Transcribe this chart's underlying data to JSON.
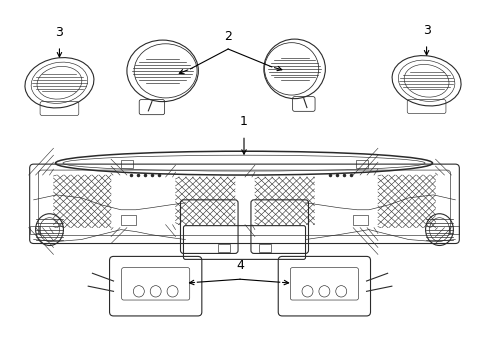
{
  "bg_color": "#ffffff",
  "line_color": "#2a2a2a",
  "label_color": "#000000",
  "fig_width": 4.89,
  "fig_height": 3.6,
  "dpi": 100,
  "lw": 0.8,
  "lw_thin": 0.45,
  "lw_thick": 1.1
}
